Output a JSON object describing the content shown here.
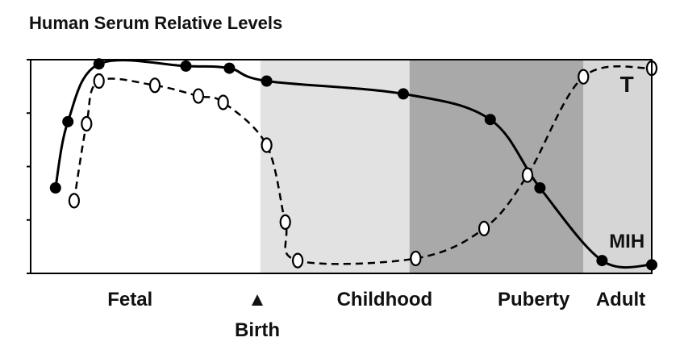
{
  "chart_data": {
    "type": "line",
    "title": "Human Serum Relative Levels",
    "xlabel": "",
    "ylabel": "",
    "stages": [
      {
        "label": "Fetal",
        "color": "#ffffff"
      },
      {
        "label": "Childhood",
        "color": "#e2e2e2"
      },
      {
        "label": "Puberty",
        "color": "#a9a9a9"
      },
      {
        "label": "Adult",
        "color": "#d6d6d6"
      }
    ],
    "birth_marker": {
      "label": "Birth",
      "symbol": "▲"
    },
    "xlim": [
      0,
      100
    ],
    "ylim": [
      0,
      100
    ],
    "grid": false,
    "series": [
      {
        "name": "MIH",
        "style": "solid",
        "marker": "filled-circle",
        "color": "#000000",
        "x": [
          4,
          6,
          11,
          25,
          32,
          38,
          60,
          74,
          82,
          92,
          100
        ],
        "y": [
          40,
          71,
          98,
          97,
          96,
          90,
          84,
          72,
          40,
          6,
          4
        ]
      },
      {
        "name": "T",
        "style": "dashed",
        "marker": "open-circle",
        "color": "#000000",
        "x": [
          7,
          9,
          11,
          20,
          27,
          31,
          38,
          41,
          43,
          62,
          73,
          80,
          89,
          100
        ],
        "y": [
          34,
          70,
          90,
          88,
          83,
          80,
          60,
          24,
          6,
          7,
          21,
          46,
          92,
          96
        ]
      }
    ]
  }
}
